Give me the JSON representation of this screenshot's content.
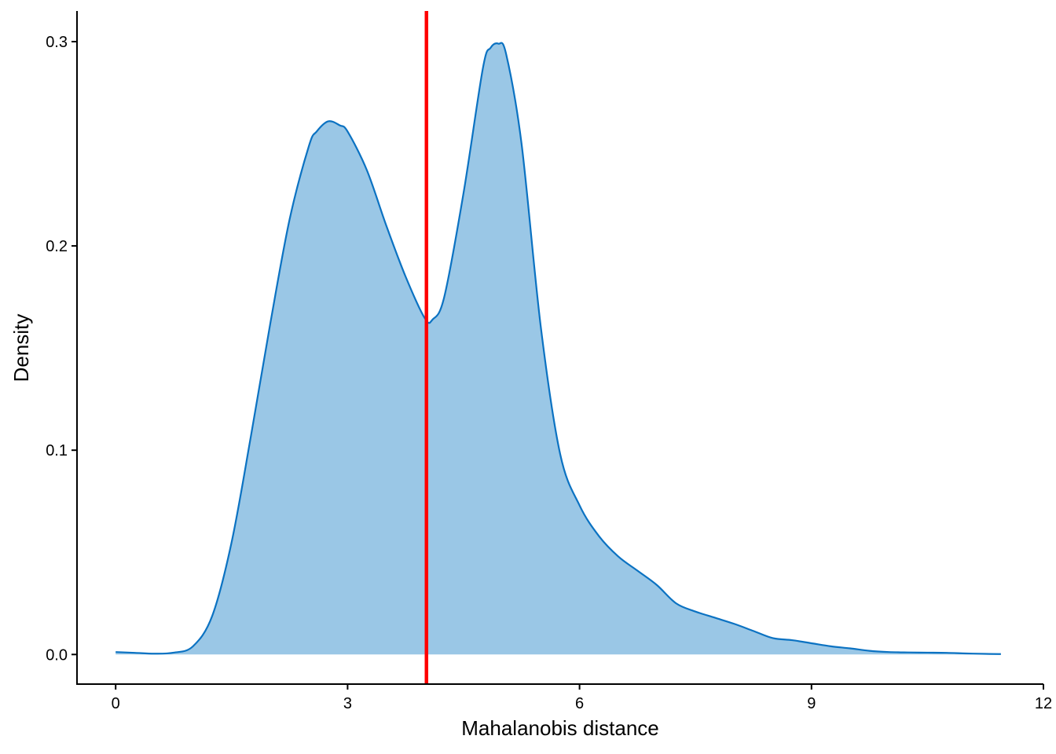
{
  "chart_data": {
    "type": "area",
    "title": "",
    "xlabel": "Mahalanobis distance",
    "ylabel": "Density",
    "xlim": [
      -0.5,
      12
    ],
    "ylim": [
      -0.0145,
      0.315
    ],
    "x_ticks": [
      0,
      3,
      6,
      9,
      12
    ],
    "y_ticks": [
      0.0,
      0.1,
      0.2,
      0.3
    ],
    "x_tick_labels": [
      "0",
      "3",
      "6",
      "9",
      "12"
    ],
    "y_tick_labels": [
      "0.0",
      "0.1",
      "0.2",
      "0.3"
    ],
    "grid": false,
    "legend": "none",
    "colors": {
      "fill": "#9AC7E6",
      "line": "#0B72C2",
      "vline": "#FF0000",
      "axis": "#000000"
    },
    "vline": {
      "x": 4.02
    },
    "series": [
      {
        "x": [
          0,
          0.25,
          0.5,
          0.75,
          1.0,
          1.25,
          1.5,
          1.75,
          2.0,
          2.25,
          2.5,
          2.6,
          2.75,
          2.9,
          3.0,
          3.25,
          3.5,
          3.75,
          4.0,
          4.1,
          4.25,
          4.5,
          4.75,
          4.85,
          4.95,
          5.05,
          5.25,
          5.5,
          5.75,
          6.0,
          6.25,
          6.5,
          6.75,
          7.0,
          7.25,
          7.5,
          7.75,
          8.0,
          8.25,
          8.5,
          8.75,
          9.0,
          9.25,
          9.5,
          9.75,
          10.0,
          10.25,
          10.5,
          10.75,
          11.0,
          11.25,
          11.45
        ],
        "y": [
          0.0012,
          0.0008,
          0.0004,
          0.0009,
          0.004,
          0.019,
          0.055,
          0.107,
          0.162,
          0.213,
          0.249,
          0.256,
          0.261,
          0.259,
          0.256,
          0.237,
          0.21,
          0.185,
          0.1645,
          0.164,
          0.175,
          0.226,
          0.287,
          0.297,
          0.299,
          0.294,
          0.25,
          0.16,
          0.098,
          0.073,
          0.058,
          0.048,
          0.041,
          0.034,
          0.025,
          0.021,
          0.018,
          0.015,
          0.0115,
          0.008,
          0.007,
          0.0055,
          0.004,
          0.003,
          0.0018,
          0.0012,
          0.001,
          0.0009,
          0.0008,
          0.0005,
          0.0003,
          0.0002
        ]
      }
    ]
  }
}
